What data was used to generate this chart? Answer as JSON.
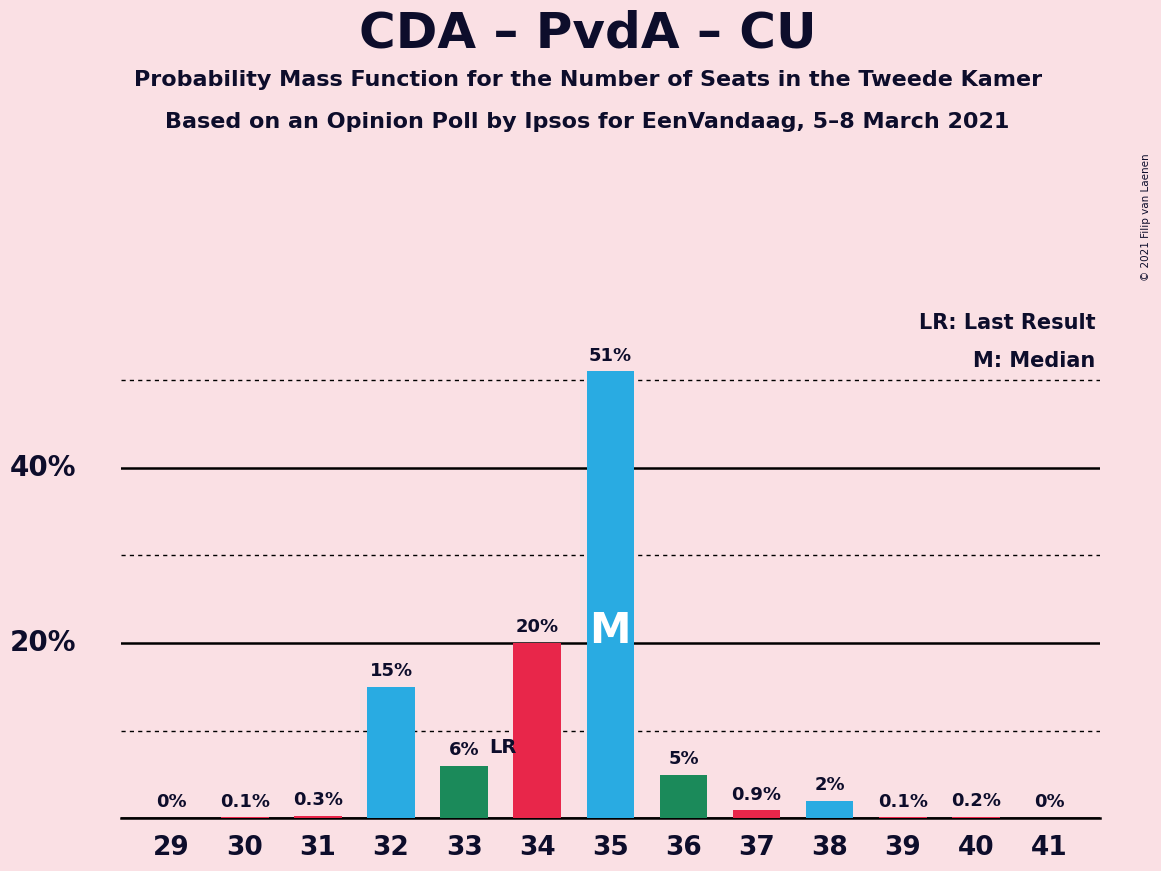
{
  "title": "CDA – PvdA – CU",
  "subtitle1": "Probability Mass Function for the Number of Seats in the Tweede Kamer",
  "subtitle2": "Based on an Opinion Poll by Ipsos for EenVandaag, 5–8 March 2021",
  "copyright": "© 2021 Filip van Laenen",
  "seats": [
    29,
    30,
    31,
    32,
    33,
    34,
    35,
    36,
    37,
    38,
    39,
    40,
    41
  ],
  "values": [
    0.0,
    0.1,
    0.3,
    15.0,
    6.0,
    20.0,
    51.0,
    5.0,
    0.9,
    2.0,
    0.1,
    0.2,
    0.0
  ],
  "labels": [
    "0%",
    "0.1%",
    "0.3%",
    "15%",
    "6%",
    "20%",
    "51%",
    "5%",
    "0.9%",
    "2%",
    "0.1%",
    "0.2%",
    "0%"
  ],
  "bar_colors": [
    "#E8264A",
    "#E8264A",
    "#E8264A",
    "#29ABE2",
    "#1B8A5A",
    "#E8264A",
    "#29ABE2",
    "#1B8A5A",
    "#E8264A",
    "#29ABE2",
    "#E8264A",
    "#E8264A",
    "#E8264A"
  ],
  "median_seat": 35,
  "lr_seat": 33,
  "lr_label": "LR",
  "median_label": "M",
  "legend_lr": "LR: Last Result",
  "legend_m": "M: Median",
  "background_color": "#FAE0E4",
  "solid_yticks": [
    0,
    20,
    40
  ],
  "dotted_yticks": [
    10,
    30,
    50
  ],
  "ylabel_ticks": [
    20,
    40
  ],
  "ylabel_labels": [
    "20%",
    "40%"
  ],
  "ylim": [
    0,
    58
  ],
  "xlim": [
    28.3,
    41.7
  ],
  "bar_width": 0.65
}
